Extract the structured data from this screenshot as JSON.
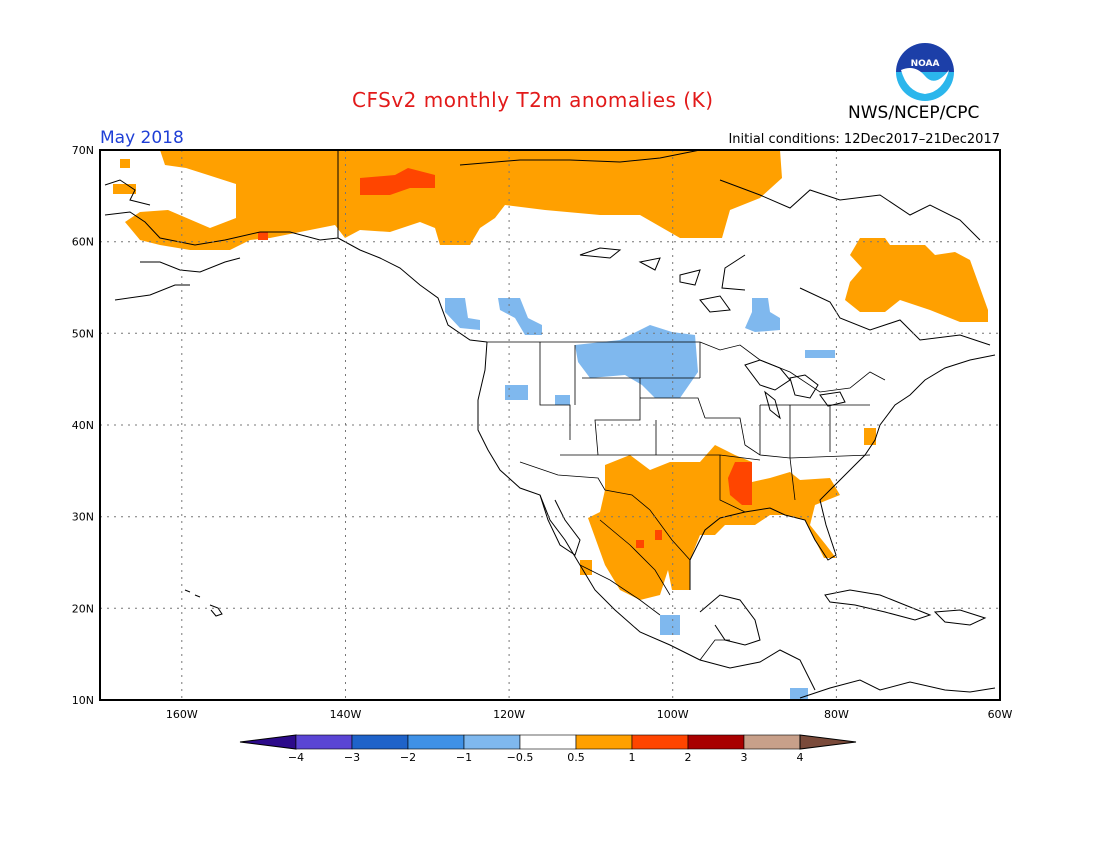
{
  "title": "CFSv2 monthly T2m anomalies (K)",
  "organization": "NWS/NCEP/CPC",
  "logo_text": "NOAA",
  "valid_month": "May 2018",
  "initial_conditions": "Initial conditions: 12Dec2017–21Dec2017",
  "axes": {
    "lat_labels": [
      "70N",
      "60N",
      "50N",
      "40N",
      "30N",
      "20N",
      "10N"
    ],
    "lon_labels": [
      "160W",
      "140W",
      "120W",
      "100W",
      "80W",
      "60W"
    ]
  },
  "colorbar": {
    "labels": [
      "−4",
      "−3",
      "−2",
      "−1",
      "−0.5",
      "0.5",
      "1",
      "2",
      "3",
      "4"
    ],
    "colors": [
      "#2c0a8a",
      "#5a45d4",
      "#1f63c9",
      "#3f91e6",
      "#7fb8ee",
      "#ffffff",
      "#ffa000",
      "#ff4500",
      "#a80000",
      "#c8a08a",
      "#7a4a3a"
    ]
  }
}
